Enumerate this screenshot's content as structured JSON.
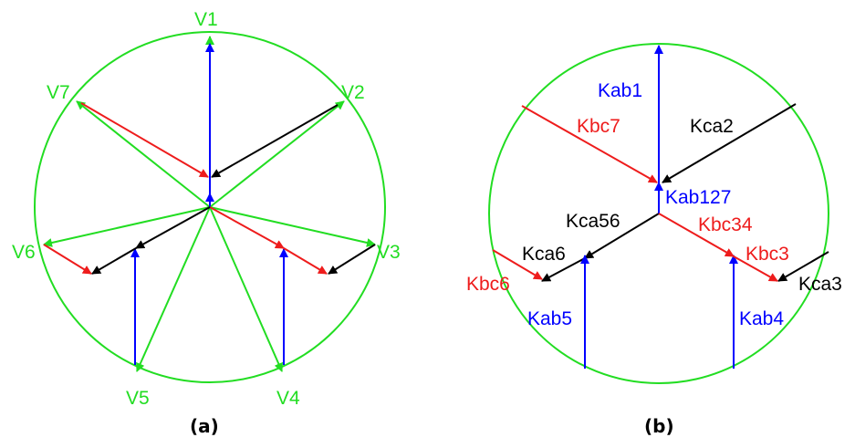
{
  "colors": {
    "green": "#22dd22",
    "blue": "#0000ff",
    "red": "#ee1c1c",
    "black": "#000000"
  },
  "panel_a": {
    "caption": "(a)",
    "labels": {
      "v1": "V1",
      "v2": "V2",
      "v3": "V3",
      "v4": "V4",
      "v5": "V5",
      "v6": "V6",
      "v7": "V7"
    }
  },
  "panel_b": {
    "caption": "(b)",
    "labels": {
      "kab1": "Kab1",
      "kbc7": "Kbc7",
      "kca2": "Kca2",
      "kab127": "Kab127",
      "kca56": "Kca56",
      "kbc34": "Kbc34",
      "kca6": "Kca6",
      "kbc3": "Kbc3",
      "kbc6": "Kbc6",
      "kca3": "Kca3",
      "kab5": "Kab5",
      "kab4": "Kab4"
    }
  }
}
